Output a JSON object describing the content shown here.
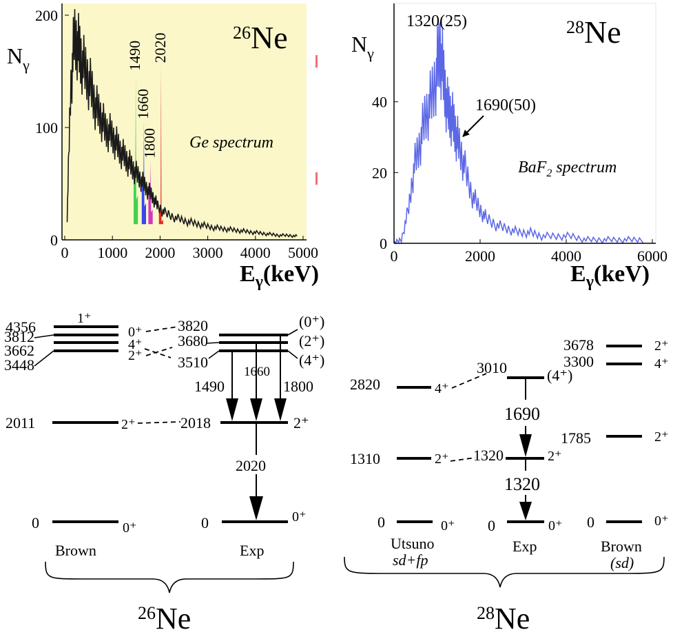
{
  "colors": {
    "ge_background": "#fbf7c9",
    "ge_trace": "#1a1a1a",
    "baf2_trace": "#5b67e6",
    "peak_1490": "#2ecc40",
    "peak_1660": "#2233ee",
    "peak_1800": "#d020c0",
    "peak_2020": "#e01515"
  },
  "chart_data": [
    {
      "type": "line",
      "panel": "26Ne Ge spectrum",
      "nucleus": {
        "mass": "26",
        "symbol": "Ne"
      },
      "annotation": "Ge spectrum",
      "ylabel": "N",
      "ylabel_sub": "γ",
      "xlabel": "E",
      "xlabel_sub": "γ",
      "xlabel_unit": "(keV)",
      "xlim": [
        0,
        5000
      ],
      "ylim": [
        0,
        200
      ],
      "xticks": [
        "0",
        "1000",
        "2000",
        "3000",
        "4000",
        "5000"
      ],
      "yticks": [
        "0",
        "100",
        "200"
      ],
      "x": [
        50,
        120,
        200,
        280,
        350,
        450,
        550,
        650,
        750,
        850,
        950,
        1050,
        1150,
        1250,
        1350,
        1450,
        1550,
        1650,
        1750,
        1850,
        1950,
        2100,
        2300,
        2500,
        2700,
        2900,
        3100,
        3300,
        3500,
        3700,
        3900,
        4100,
        4300,
        4500,
        4700,
        4900
      ],
      "y": [
        20,
        130,
        180,
        172,
        160,
        148,
        135,
        118,
        110,
        98,
        95,
        88,
        80,
        74,
        68,
        62,
        56,
        50,
        44,
        38,
        30,
        24,
        20,
        17,
        15,
        13,
        11,
        10,
        9,
        8,
        7,
        6,
        5,
        4,
        4,
        3
      ],
      "peaks": [
        {
          "label": "1490",
          "energy": 1490,
          "height": 148,
          "color": "#2ecc40"
        },
        {
          "label": "1660",
          "energy": 1660,
          "height": 105,
          "color": "#2233ee"
        },
        {
          "label": "1800",
          "energy": 1800,
          "height": 70,
          "color": "#d020c0"
        },
        {
          "label": "2020",
          "energy": 2020,
          "height": 155,
          "color": "#e01515"
        }
      ]
    },
    {
      "type": "line",
      "panel": "28Ne BaF2 spectrum",
      "nucleus": {
        "mass": "28",
        "symbol": "Ne"
      },
      "annotation": "BaF",
      "annotation_sub": "2",
      "annotation_tail": " spectrum",
      "ylabel": "N",
      "ylabel_sub": "γ",
      "xlabel": "E",
      "xlabel_sub": "γ",
      "xlabel_unit": "(keV)",
      "xlim": [
        0,
        7000
      ],
      "ylim": [
        0,
        60
      ],
      "xticks": [
        "0",
        "2000",
        "4000",
        "6000"
      ],
      "yticks": [
        "0",
        "20",
        "40"
      ],
      "x": [
        0,
        200,
        400,
        550,
        700,
        850,
        1000,
        1150,
        1250,
        1350,
        1450,
        1550,
        1650,
        1750,
        1900,
        2100,
        2300,
        2500,
        2800,
        3100,
        3400,
        3700,
        4000,
        4400,
        4800,
        5200,
        5600,
        6000,
        6400,
        6800
      ],
      "y": [
        0,
        1,
        10,
        22,
        28,
        36,
        40,
        48,
        55,
        46,
        38,
        36,
        32,
        28,
        22,
        14,
        10,
        7,
        5,
        4,
        3,
        3,
        2,
        2,
        2,
        1,
        1,
        1,
        1,
        1
      ],
      "peaks": [
        {
          "label": "1320(25)",
          "energy": 1320,
          "height": 55
        },
        {
          "label": "1690(50)",
          "energy": 1690,
          "height": 30
        }
      ]
    }
  ],
  "ne26_scheme": {
    "nucleus": {
      "mass": "26",
      "symbol": "Ne"
    },
    "brown": {
      "column_label": "Brown",
      "levels": [
        {
          "energy": "4356",
          "spin": "1⁺"
        },
        {
          "energy": "3812",
          "spin": "0⁺"
        },
        {
          "energy": "3662",
          "spin": "4⁺"
        },
        {
          "energy": "3448",
          "spin": "2⁺"
        },
        {
          "energy": "2011",
          "spin": "2⁺"
        },
        {
          "energy": "0",
          "spin": "0⁺"
        }
      ]
    },
    "exp": {
      "column_label": "Exp",
      "levels": [
        {
          "energy": "3820",
          "spin": "(0⁺)"
        },
        {
          "energy": "3680",
          "spin": "(2⁺)"
        },
        {
          "energy": "3510",
          "spin": "(4⁺)"
        },
        {
          "energy": "2018",
          "spin": "2⁺"
        },
        {
          "energy": "0",
          "spin": "0⁺"
        }
      ],
      "transitions": [
        "1490",
        "1660",
        "1800",
        "2020"
      ]
    }
  },
  "ne28_scheme": {
    "nucleus": {
      "mass": "28",
      "symbol": "Ne"
    },
    "utsuno": {
      "column_label": "Utsuno",
      "column_sublabel": "sd+fp",
      "levels": [
        {
          "energy": "2820",
          "spin": "4⁺"
        },
        {
          "energy": "1310",
          "spin": "2⁺"
        },
        {
          "energy": "0",
          "spin": "0⁺"
        }
      ]
    },
    "exp": {
      "column_label": "Exp",
      "levels": [
        {
          "energy": "3010",
          "spin": "(4⁺)"
        },
        {
          "energy": "1320",
          "spin": "2⁺"
        },
        {
          "energy": "0",
          "spin": "0⁺"
        }
      ],
      "transitions": [
        "1690",
        "1320"
      ]
    },
    "brown": {
      "column_label": "Brown",
      "column_sublabel": "(sd)",
      "levels": [
        {
          "energy": "3678",
          "spin": "2⁺"
        },
        {
          "energy": "3300",
          "spin": "4⁺"
        },
        {
          "energy": "1785",
          "spin": "2⁺"
        },
        {
          "energy": "0",
          "spin": "0⁺"
        }
      ]
    }
  }
}
